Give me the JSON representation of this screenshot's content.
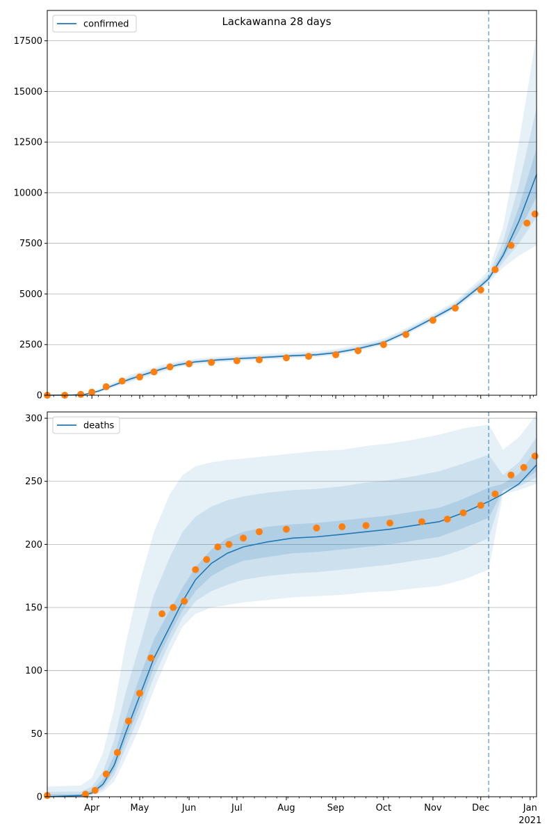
{
  "chart_data": [
    {
      "type": "line",
      "title": "Lackawanna 28 days",
      "legend": {
        "label": "confirmed",
        "placement": "top-left"
      },
      "ylim": [
        0,
        19000
      ],
      "yticks": [
        0,
        2500,
        5000,
        7500,
        10000,
        12500,
        15000,
        17500
      ],
      "ytick_labels": [
        "0",
        "2500",
        "5000",
        "7500",
        "10000",
        "12500",
        "15000",
        "17500"
      ],
      "xlim": [
        "2020-03-04",
        "2021-01-05"
      ],
      "forecast_start": "2020-12-06",
      "grid": "horizontal",
      "colors": {
        "model": "#1f77b4",
        "observed": "#ff7f0e",
        "band": "#1f77b4"
      },
      "model_series": {
        "x": [
          "2020-03-04",
          "2020-03-20",
          "2020-03-28",
          "2020-04-05",
          "2020-04-15",
          "2020-04-25",
          "2020-05-05",
          "2020-05-15",
          "2020-05-25",
          "2020-06-05",
          "2020-06-20",
          "2020-07-05",
          "2020-07-20",
          "2020-08-05",
          "2020-08-20",
          "2020-09-01",
          "2020-09-15",
          "2020-10-01",
          "2020-10-15",
          "2020-11-01",
          "2020-11-15",
          "2020-12-01",
          "2020-12-06",
          "2020-12-15",
          "2020-12-25",
          "2021-01-05"
        ],
        "y": [
          0,
          10,
          50,
          200,
          500,
          800,
          1050,
          1300,
          1500,
          1650,
          1750,
          1820,
          1880,
          1950,
          2000,
          2100,
          2300,
          2600,
          3100,
          3800,
          4400,
          5400,
          5750,
          6900,
          8600,
          10900
        ]
      },
      "bands": [
        {
          "level": "outer",
          "lower": [
            0,
            0,
            30,
            130,
            400,
            650,
            900,
            1150,
            1380,
            1520,
            1630,
            1700,
            1760,
            1830,
            1880,
            1980,
            2180,
            2480,
            2980,
            3650,
            4250,
            5200,
            5550,
            6300,
            6900,
            7400
          ],
          "upper": [
            0,
            20,
            80,
            300,
            650,
            1000,
            1250,
            1500,
            1680,
            1800,
            1900,
            1980,
            2050,
            2120,
            2170,
            2280,
            2480,
            2800,
            3300,
            4000,
            4650,
            5750,
            6200,
            8300,
            12500,
            17800
          ]
        },
        {
          "level": "middle",
          "lower": [
            0,
            5,
            40,
            160,
            440,
            710,
            960,
            1210,
            1430,
            1580,
            1680,
            1750,
            1810,
            1880,
            1935,
            2035,
            2235,
            2535,
            3035,
            3720,
            4320,
            5300,
            5650,
            6550,
            7500,
            8800
          ],
          "upper": [
            0,
            15,
            65,
            250,
            580,
            900,
            1150,
            1400,
            1600,
            1730,
            1830,
            1900,
            1960,
            2030,
            2085,
            2190,
            2390,
            2710,
            3210,
            3910,
            4540,
            5600,
            5950,
            7600,
            10400,
            14200
          ]
        },
        {
          "level": "inner",
          "lower": [
            0,
            8,
            45,
            180,
            470,
            760,
            1010,
            1260,
            1470,
            1615,
            1715,
            1785,
            1845,
            1915,
            1965,
            2065,
            2265,
            2565,
            3065,
            3760,
            4360,
            5350,
            5700,
            6750,
            8100,
            9800
          ],
          "upper": [
            0,
            12,
            55,
            220,
            530,
            840,
            1090,
            1340,
            1540,
            1690,
            1790,
            1860,
            1920,
            1990,
            2040,
            2140,
            2340,
            2650,
            3150,
            3850,
            4470,
            5480,
            5850,
            7150,
            9300,
            12200
          ]
        }
      ],
      "observed": {
        "x": [
          "2020-03-04",
          "2020-03-15",
          "2020-03-25",
          "2020-04-01",
          "2020-04-10",
          "2020-04-20",
          "2020-05-01",
          "2020-05-10",
          "2020-05-20",
          "2020-06-01",
          "2020-06-15",
          "2020-07-01",
          "2020-07-15",
          "2020-08-01",
          "2020-08-15",
          "2020-09-01",
          "2020-09-15",
          "2020-10-01",
          "2020-10-15",
          "2020-11-01",
          "2020-11-15",
          "2020-12-01",
          "2020-12-10",
          "2020-12-20",
          "2020-12-30",
          "2021-01-04"
        ],
        "y": [
          0,
          0,
          40,
          150,
          420,
          700,
          900,
          1150,
          1400,
          1550,
          1620,
          1700,
          1750,
          1850,
          1920,
          2000,
          2200,
          2500,
          3000,
          3700,
          4300,
          5200,
          6200,
          7400,
          8500,
          8950
        ]
      }
    },
    {
      "type": "line",
      "legend": {
        "label": "deaths",
        "placement": "top-left"
      },
      "ylim": [
        0,
        305
      ],
      "yticks": [
        0,
        50,
        100,
        150,
        200,
        250,
        300
      ],
      "ytick_labels": [
        "0",
        "50",
        "100",
        "150",
        "200",
        "250",
        "300"
      ],
      "xlim": [
        "2020-03-04",
        "2021-01-05"
      ],
      "forecast_start": "2020-12-06",
      "xtick_labels": [
        "Apr",
        "May",
        "Jun",
        "Jul",
        "Aug",
        "Sep",
        "Oct",
        "Nov",
        "Dec",
        "Jan"
      ],
      "year_label": "2021",
      "grid": "horizontal",
      "colors": {
        "model": "#1f77b4",
        "observed": "#ff7f0e",
        "band": "#1f77b4"
      },
      "model_series": {
        "x": [
          "2020-03-04",
          "2020-03-25",
          "2020-04-01",
          "2020-04-08",
          "2020-04-15",
          "2020-04-22",
          "2020-05-01",
          "2020-05-10",
          "2020-05-20",
          "2020-05-28",
          "2020-06-05",
          "2020-06-15",
          "2020-06-25",
          "2020-07-05",
          "2020-07-20",
          "2020-08-05",
          "2020-08-20",
          "2020-09-05",
          "2020-09-20",
          "2020-10-05",
          "2020-10-20",
          "2020-11-05",
          "2020-11-20",
          "2020-12-06",
          "2020-12-15",
          "2020-12-25",
          "2021-01-05"
        ],
        "y": [
          0,
          1,
          3,
          10,
          25,
          50,
          80,
          110,
          135,
          155,
          172,
          185,
          193,
          198,
          202,
          205,
          206,
          208,
          210,
          212,
          215,
          218,
          225,
          234,
          240,
          248,
          263
        ]
      },
      "bands": [
        {
          "level": "outer",
          "lower": [
            0,
            0,
            1,
            4,
            12,
            30,
            55,
            85,
            115,
            135,
            145,
            150,
            152,
            154,
            156,
            158,
            159,
            160,
            162,
            163,
            165,
            167,
            172,
            180,
            240,
            243,
            248
          ],
          "upper": [
            8,
            9,
            15,
            35,
            70,
            120,
            170,
            210,
            240,
            255,
            262,
            265,
            267,
            268,
            270,
            272,
            274,
            275,
            278,
            280,
            283,
            287,
            292,
            295,
            275,
            285,
            303
          ]
        },
        {
          "level": "middle",
          "lower": [
            0,
            0,
            2,
            6,
            17,
            38,
            65,
            95,
            123,
            142,
            155,
            163,
            168,
            172,
            175,
            177,
            178,
            180,
            182,
            184,
            187,
            190,
            196,
            205,
            242,
            246,
            253
          ],
          "upper": [
            4,
            4,
            8,
            20,
            45,
            82,
            120,
            160,
            190,
            210,
            222,
            230,
            235,
            238,
            241,
            243,
            244,
            246,
            249,
            251,
            254,
            258,
            264,
            271,
            255,
            265,
            285
          ]
        },
        {
          "level": "inner",
          "lower": [
            0,
            0,
            2,
            8,
            21,
            44,
            72,
            103,
            129,
            148,
            163,
            175,
            182,
            187,
            190,
            193,
            194,
            196,
            198,
            200,
            203,
            206,
            213,
            221,
            243,
            248,
            258
          ],
          "upper": [
            2,
            2,
            5,
            14,
            33,
            62,
            95,
            125,
            148,
            166,
            182,
            196,
            205,
            210,
            214,
            216,
            217,
            219,
            221,
            223,
            226,
            229,
            236,
            245,
            248,
            256,
            275
          ]
        }
      ],
      "observed": {
        "x": [
          "2020-03-04",
          "2020-03-28",
          "2020-04-03",
          "2020-04-10",
          "2020-04-17",
          "2020-04-24",
          "2020-05-01",
          "2020-05-08",
          "2020-05-15",
          "2020-05-22",
          "2020-05-29",
          "2020-06-05",
          "2020-06-12",
          "2020-06-19",
          "2020-06-26",
          "2020-07-05",
          "2020-07-15",
          "2020-08-01",
          "2020-08-20",
          "2020-09-05",
          "2020-09-20",
          "2020-10-05",
          "2020-10-25",
          "2020-11-10",
          "2020-11-20",
          "2020-12-01",
          "2020-12-10",
          "2020-12-20",
          "2020-12-28",
          "2021-01-04"
        ],
        "y": [
          1,
          2,
          5,
          18,
          35,
          60,
          82,
          110,
          145,
          150,
          155,
          180,
          188,
          198,
          200,
          205,
          210,
          212,
          213,
          214,
          215,
          217,
          218,
          220,
          225,
          231,
          240,
          255,
          261,
          270
        ]
      }
    }
  ]
}
